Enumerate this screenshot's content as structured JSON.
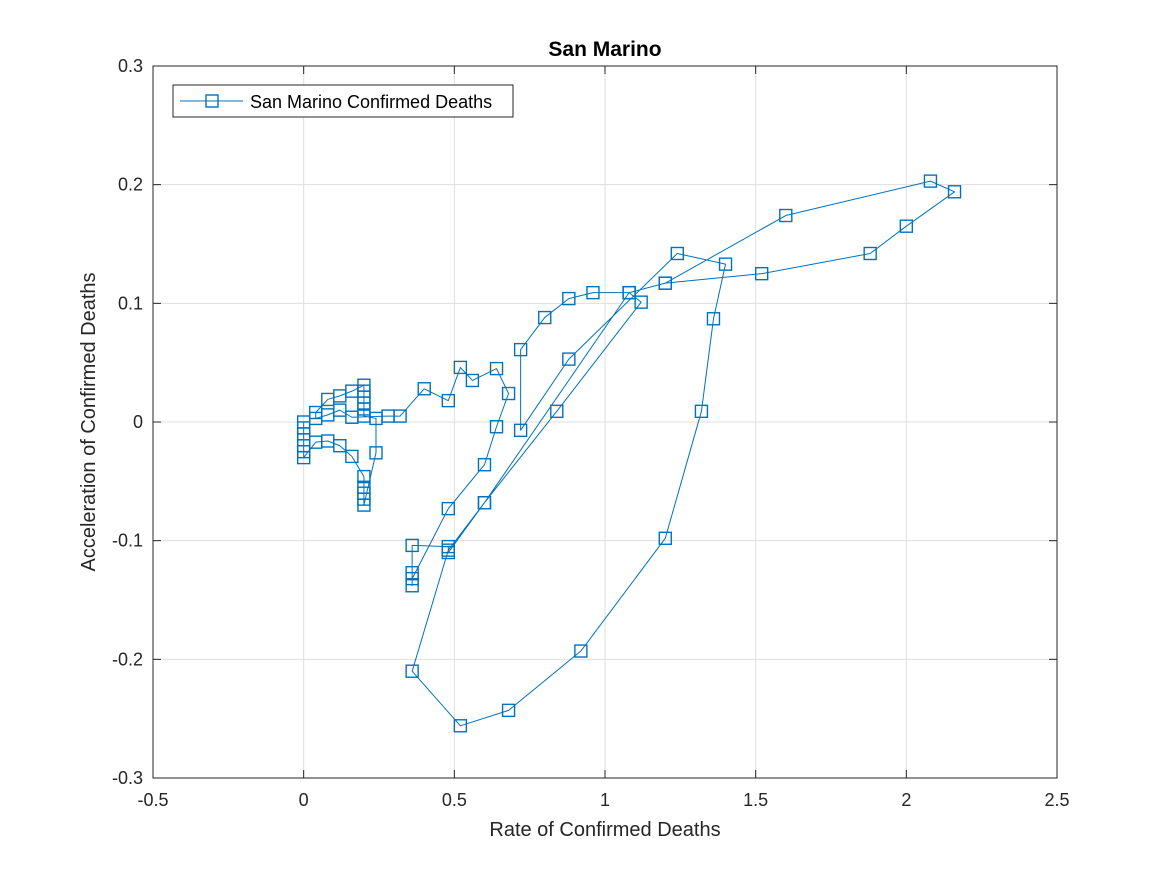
{
  "chart_data": {
    "type": "line",
    "title": "San Marino",
    "xlabel": "Rate of Confirmed Deaths",
    "ylabel": "Acceleration of Confirmed Deaths",
    "xlim": [
      -0.5,
      2.5
    ],
    "ylim": [
      -0.3,
      0.3
    ],
    "xticks": [
      -0.5,
      0,
      0.5,
      1,
      1.5,
      2,
      2.5
    ],
    "xtick_labels": [
      "-0.5",
      "0",
      "0.5",
      "1",
      "1.5",
      "2",
      "2.5"
    ],
    "yticks": [
      -0.3,
      -0.2,
      -0.1,
      0,
      0.1,
      0.2,
      0.3
    ],
    "ytick_labels": [
      "-0.3",
      "-0.2",
      "-0.1",
      "0",
      "0.1",
      "0.2",
      "0.3"
    ],
    "grid": true,
    "legend_position": "top-left",
    "marker": "square",
    "color": "#0072bd",
    "series": [
      {
        "name": "San Marino Confirmed Deaths",
        "points": [
          [
            0,
            0
          ],
          [
            0,
            -0.005
          ],
          [
            0,
            -0.01
          ],
          [
            0,
            -0.015
          ],
          [
            0,
            -0.02
          ],
          [
            0,
            -0.025
          ],
          [
            0,
            -0.03
          ],
          [
            0.04,
            -0.017
          ],
          [
            0.08,
            -0.016
          ],
          [
            0.12,
            -0.02
          ],
          [
            0.16,
            -0.029
          ],
          [
            0.2,
            -0.046
          ],
          [
            0.2,
            -0.055
          ],
          [
            0.2,
            -0.06
          ],
          [
            0.2,
            -0.065
          ],
          [
            0.2,
            -0.07
          ],
          [
            0.24,
            -0.026
          ],
          [
            0.24,
            0.003
          ],
          [
            0.2,
            0.005
          ],
          [
            0.2,
            0.011
          ],
          [
            0.2,
            0.016
          ],
          [
            0.2,
            0.021
          ],
          [
            0.2,
            0.026
          ],
          [
            0.2,
            0.031
          ],
          [
            0.16,
            0.026
          ],
          [
            0.12,
            0.022
          ],
          [
            0.08,
            0.019
          ],
          [
            0.04,
            0.008
          ],
          [
            0.04,
            0.003
          ],
          [
            0.08,
            0.006
          ],
          [
            0.12,
            0.01
          ],
          [
            0.16,
            0.004
          ],
          [
            0.28,
            0.005
          ],
          [
            0.32,
            0.005
          ],
          [
            0.4,
            0.028
          ],
          [
            0.48,
            0.018
          ],
          [
            0.52,
            0.046
          ],
          [
            0.56,
            0.035
          ],
          [
            0.64,
            0.045
          ],
          [
            0.68,
            0.024
          ],
          [
            0.64,
            -0.004
          ],
          [
            0.6,
            -0.036
          ],
          [
            0.48,
            -0.073
          ],
          [
            0.36,
            -0.132
          ],
          [
            0.36,
            -0.138
          ],
          [
            0.36,
            -0.127
          ],
          [
            0.36,
            -0.104
          ],
          [
            0.48,
            -0.105
          ],
          [
            0.48,
            -0.11
          ],
          [
            0.6,
            -0.068
          ],
          [
            0.84,
            0.009
          ],
          [
            1.12,
            0.101
          ],
          [
            1.08,
            0.109
          ],
          [
            0.96,
            0.109
          ],
          [
            0.88,
            0.104
          ],
          [
            0.8,
            0.088
          ],
          [
            0.72,
            0.061
          ],
          [
            0.72,
            -0.007
          ],
          [
            0.88,
            0.053
          ],
          [
            1.24,
            0.142
          ],
          [
            1.4,
            0.133
          ],
          [
            1.36,
            0.087
          ],
          [
            1.32,
            0.009
          ],
          [
            1.2,
            -0.098
          ],
          [
            0.92,
            -0.193
          ],
          [
            0.68,
            -0.243
          ],
          [
            0.52,
            -0.256
          ],
          [
            0.36,
            -0.21
          ],
          [
            0.48,
            -0.108
          ],
          [
            0.6,
            -0.068
          ],
          [
            1.08,
            0.109
          ],
          [
            1.2,
            0.117
          ],
          [
            1.52,
            0.125
          ],
          [
            1.88,
            0.142
          ],
          [
            2.0,
            0.165
          ],
          [
            2.16,
            0.194
          ],
          [
            2.08,
            0.203
          ],
          [
            1.6,
            0.174
          ],
          [
            1.2,
            0.117
          ]
        ]
      }
    ]
  }
}
